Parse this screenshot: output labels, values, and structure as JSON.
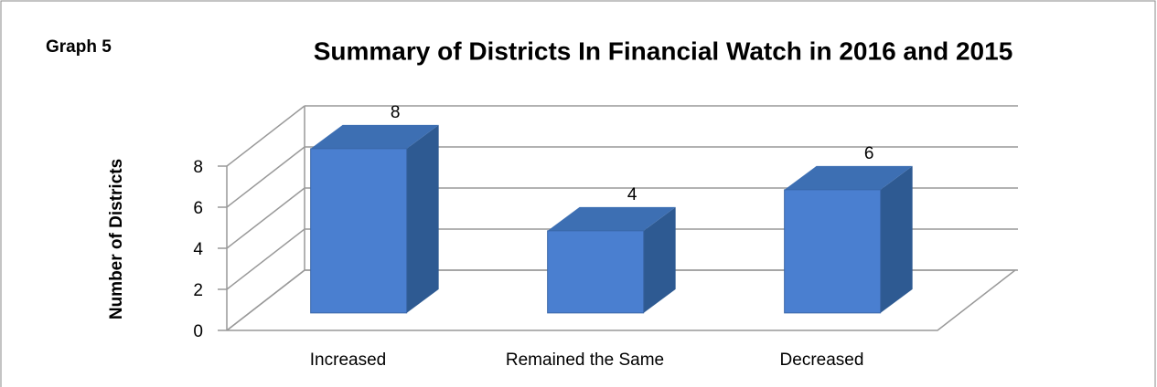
{
  "chart_data": {
    "type": "bar",
    "graph_label": "Graph 5",
    "title": "Summary of Districts In Financial Watch in 2016 and 2015",
    "y_axis_label": "Number of Districts",
    "categories": [
      "Increased",
      "Remained the Same",
      "Decreased"
    ],
    "values": [
      8,
      4,
      6
    ],
    "color": "#4a7fd0",
    "ylim": [
      0,
      8
    ],
    "yticks": [
      0,
      2,
      4,
      6,
      8
    ],
    "grid": true
  }
}
